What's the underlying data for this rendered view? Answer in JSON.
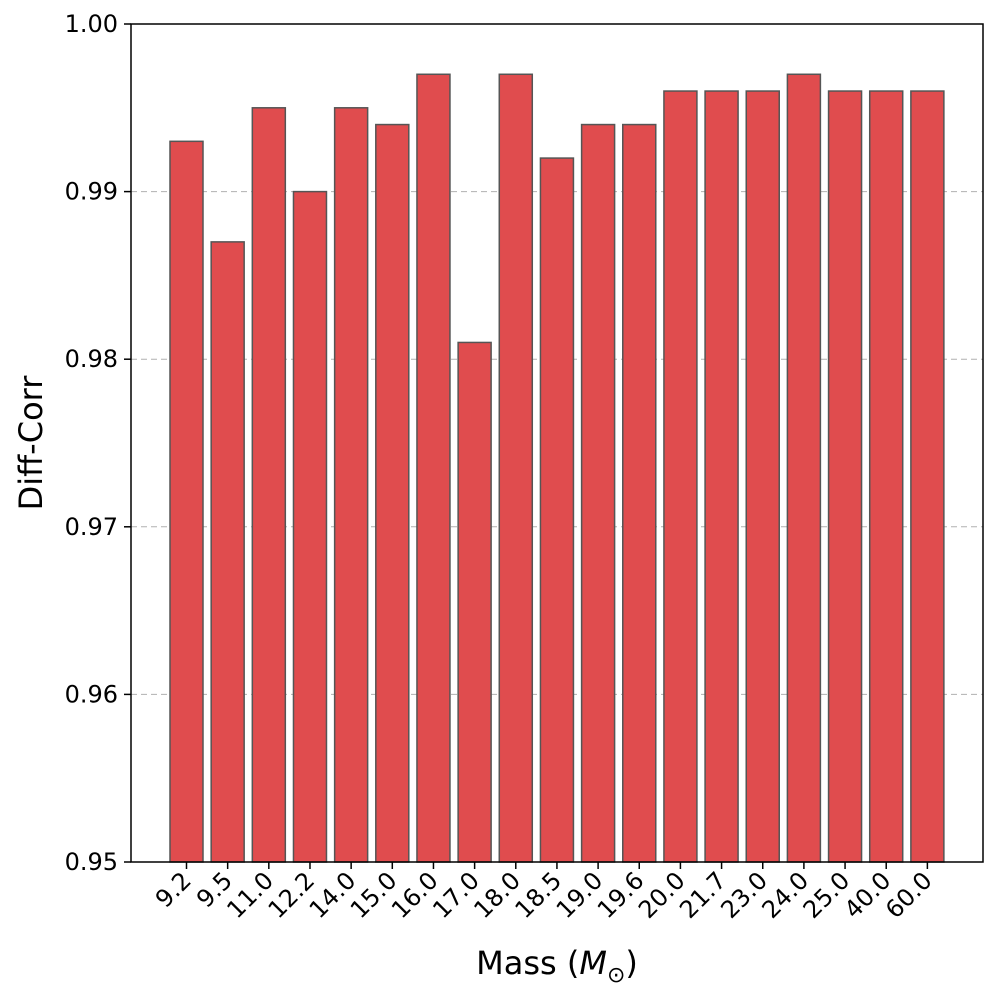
{
  "chart_data": {
    "type": "bar",
    "categories": [
      "9.2",
      "9.5",
      "11.0",
      "12.2",
      "14.0",
      "15.0",
      "16.0",
      "17.0",
      "18.0",
      "18.5",
      "19.0",
      "19.6",
      "20.0",
      "21.7",
      "23.0",
      "24.0",
      "25.0",
      "40.0",
      "60.0"
    ],
    "values": [
      0.993,
      0.987,
      0.995,
      0.99,
      0.995,
      0.994,
      0.997,
      0.981,
      0.997,
      0.992,
      0.994,
      0.994,
      0.996,
      0.996,
      0.996,
      0.997,
      0.996,
      0.996,
      0.996
    ],
    "xlabel": "Mass (",
    "xlabel_math": "M",
    "xlabel_sub": "⊙",
    "xlabel_end": ")",
    "ylabel": "Diff-Corr",
    "ylim": [
      0.95,
      1.0
    ],
    "yticks": [
      "0.95",
      "0.96",
      "0.97",
      "0.98",
      "0.99",
      "1.00"
    ],
    "ytick_values": [
      0.95,
      0.96,
      0.97,
      0.98,
      0.99,
      1.0
    ],
    "grid": "y-dashed",
    "bar_color": "#e04c4e",
    "edge_color": "#555555"
  }
}
